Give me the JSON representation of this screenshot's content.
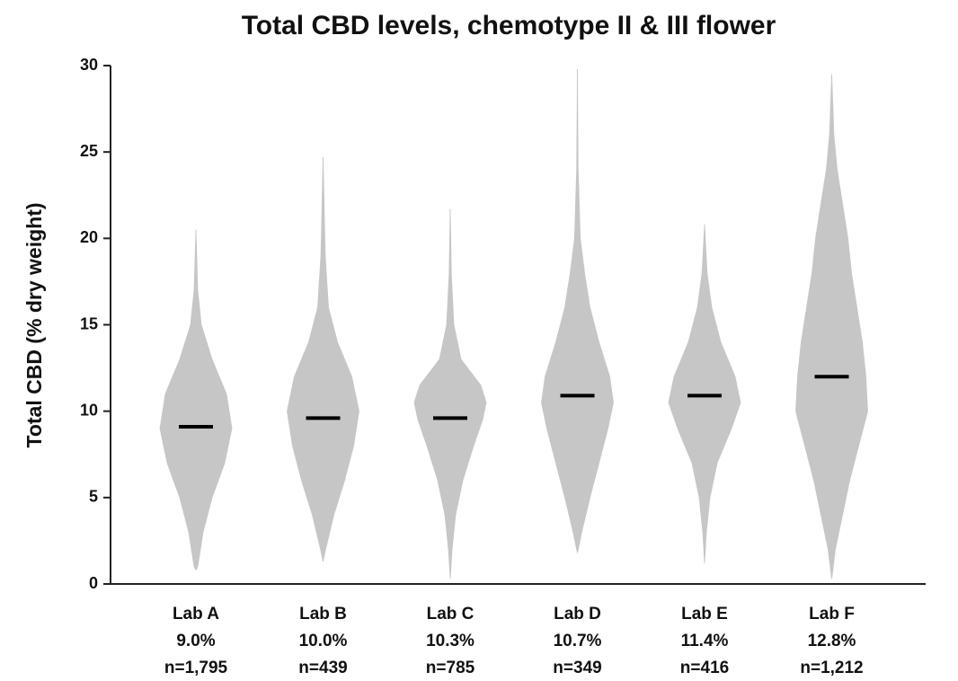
{
  "chart_data": {
    "type": "violin",
    "title": "Total CBD levels, chemotype II & III flower",
    "y_label": "Total CBD (% dry weight)",
    "categories": [
      "Lab A",
      "Lab B",
      "Lab C",
      "Lab D",
      "Lab E",
      "Lab F"
    ],
    "mean_labels": [
      "9.0%",
      "10.0%",
      "10.3%",
      "10.7%",
      "11.4%",
      "12.8%"
    ],
    "n_labels": [
      "n=1,795",
      "n=439",
      "n=785",
      "n=349",
      "n=416",
      "n=1,212"
    ],
    "medians": [
      9.1,
      9.6,
      9.6,
      10.9,
      10.9,
      12.0
    ],
    "violins": [
      {
        "y": [
          0.8,
          1,
          3,
          5,
          7,
          9,
          11,
          13,
          15,
          17,
          20.5
        ],
        "density": [
          0,
          0.05,
          0.2,
          0.45,
          0.8,
          1,
          0.85,
          0.45,
          0.15,
          0.05,
          0
        ]
      },
      {
        "y": [
          1.3,
          2,
          4,
          6,
          8,
          10,
          12,
          14,
          16,
          19,
          24.7
        ],
        "density": [
          0,
          0.07,
          0.3,
          0.6,
          0.85,
          1,
          0.8,
          0.4,
          0.15,
          0.06,
          0
        ]
      },
      {
        "y": [
          0.3,
          2,
          4,
          6,
          8,
          9.5,
          10.5,
          11.5,
          13,
          15,
          18,
          21.7
        ],
        "density": [
          0,
          0.05,
          0.15,
          0.35,
          0.65,
          0.9,
          1,
          0.85,
          0.3,
          0.1,
          0.03,
          0
        ]
      },
      {
        "y": [
          1.8,
          3,
          5,
          7,
          9,
          10.5,
          12,
          14,
          16,
          18,
          20,
          24,
          29.8
        ],
        "density": [
          0,
          0.12,
          0.35,
          0.6,
          0.85,
          1,
          0.9,
          0.6,
          0.35,
          0.2,
          0.08,
          0.02,
          0
        ]
      },
      {
        "y": [
          1.2,
          3,
          5,
          7,
          9,
          10.5,
          12,
          14,
          16,
          18,
          20.8
        ],
        "density": [
          0,
          0.05,
          0.15,
          0.35,
          0.75,
          1,
          0.85,
          0.45,
          0.2,
          0.07,
          0
        ]
      },
      {
        "y": [
          0.3,
          2,
          4,
          6,
          8,
          10,
          12,
          14,
          16,
          18,
          20,
          22,
          24,
          26,
          29.5
        ],
        "density": [
          0,
          0.1,
          0.3,
          0.5,
          0.75,
          1,
          0.95,
          0.85,
          0.7,
          0.55,
          0.45,
          0.3,
          0.15,
          0.06,
          0
        ]
      }
    ],
    "color": "#c6c6c6",
    "median_color": "#000000",
    "ylim": [
      0,
      30
    ],
    "yticks": [
      0,
      5,
      10,
      15,
      20,
      25,
      30
    ]
  }
}
